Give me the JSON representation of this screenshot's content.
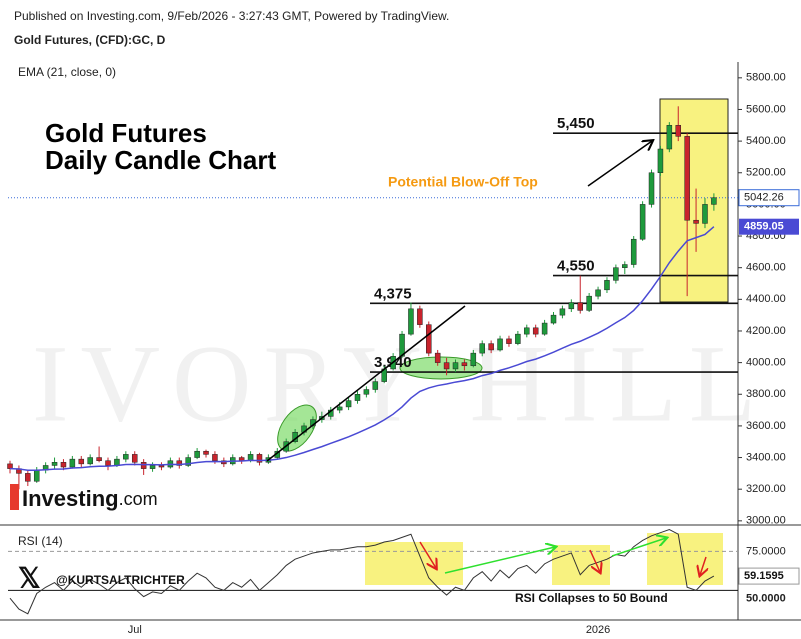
{
  "header": {
    "published": "Published on Investing.com, 9/Feb/2026 - 3:27:43 GMT, Powered by TradingView.",
    "symbol": "Gold Futures, (CFD):GC, D",
    "watermark": "IVORY HILL",
    "logo_main": "Investing",
    "logo_suffix": ".com",
    "handle": "@KURTSALTRICHTER"
  },
  "chart_data": [
    {
      "type": "candlestick",
      "title": "Gold Futures",
      "subtitle": "Daily Candle Chart",
      "annotation": "Potential Blow-Off Top",
      "up_color": "#1e9a3c",
      "down_color": "#c8232c",
      "categories": [
        null,
        null,
        null,
        null,
        null,
        null,
        null,
        null,
        null,
        null,
        null,
        null,
        null,
        null,
        "Jul",
        null,
        null,
        null,
        null,
        null,
        null,
        null,
        null,
        null,
        null,
        null,
        null,
        null,
        null,
        null,
        null,
        null,
        null,
        null,
        null,
        null,
        null,
        null,
        null,
        null,
        null,
        null,
        null,
        null,
        null,
        null,
        null,
        null,
        null,
        null,
        null,
        null,
        null,
        null,
        null,
        null,
        null,
        null,
        null,
        null,
        null,
        null,
        null,
        null,
        null,
        null,
        "2026",
        null,
        null,
        null,
        null,
        null,
        null,
        null,
        null,
        null,
        null,
        null,
        null,
        null
      ],
      "open": [
        3360,
        3330,
        3300,
        3250,
        3320,
        3350,
        3370,
        3340,
        3390,
        3360,
        3400,
        3380,
        3350,
        3390,
        3420,
        3370,
        3330,
        3350,
        3340,
        3380,
        3350,
        3400,
        3440,
        3420,
        3380,
        3360,
        3400,
        3380,
        3420,
        3370,
        3400,
        3440,
        3500,
        3560,
        3600,
        3640,
        3660,
        3700,
        3720,
        3760,
        3800,
        3830,
        3880,
        3960,
        4040,
        4180,
        4340,
        4240,
        4060,
        4000,
        3960,
        4000,
        3980,
        4060,
        4120,
        4080,
        4150,
        4120,
        4180,
        4220,
        4180,
        4250,
        4300,
        4340,
        4380,
        4330,
        4420,
        4460,
        4520,
        4600,
        4620,
        4780,
        5000,
        5200,
        5350,
        5500,
        5430,
        4900,
        4880,
        5000
      ],
      "high": [
        3380,
        3350,
        3320,
        3340,
        3370,
        3400,
        3390,
        3410,
        3410,
        3420,
        3470,
        3400,
        3410,
        3440,
        3440,
        3390,
        3370,
        3370,
        3400,
        3400,
        3420,
        3460,
        3450,
        3440,
        3400,
        3420,
        3410,
        3440,
        3430,
        3420,
        3460,
        3520,
        3580,
        3620,
        3660,
        3690,
        3720,
        3750,
        3780,
        3820,
        3850,
        3900,
        3980,
        4060,
        4200,
        4380,
        4360,
        4260,
        4080,
        4030,
        4020,
        4020,
        4080,
        4140,
        4140,
        4170,
        4170,
        4200,
        4240,
        4240,
        4270,
        4320,
        4360,
        4400,
        4550,
        4440,
        4480,
        4540,
        4620,
        4640,
        4800,
        5020,
        5220,
        5370,
        5520,
        5620,
        5450,
        5100,
        5040,
        5070
      ],
      "low": [
        3300,
        3200,
        3220,
        3240,
        3300,
        3330,
        3320,
        3330,
        3340,
        3350,
        3370,
        3320,
        3340,
        3370,
        3350,
        3290,
        3310,
        3320,
        3330,
        3330,
        3340,
        3390,
        3400,
        3360,
        3340,
        3350,
        3360,
        3370,
        3350,
        3360,
        3390,
        3430,
        3490,
        3540,
        3580,
        3620,
        3640,
        3680,
        3700,
        3740,
        3780,
        3810,
        3870,
        3950,
        4030,
        4170,
        4220,
        4040,
        3980,
        3920,
        3940,
        3950,
        3970,
        4040,
        4060,
        4070,
        4100,
        4110,
        4160,
        4160,
        4170,
        4240,
        4280,
        4320,
        4310,
        4320,
        4400,
        4440,
        4500,
        4560,
        4600,
        4770,
        4980,
        5180,
        5330,
        5400,
        4420,
        4700,
        4850,
        4960
      ],
      "close": [
        3330,
        3300,
        3250,
        3320,
        3350,
        3370,
        3340,
        3390,
        3360,
        3400,
        3380,
        3350,
        3390,
        3420,
        3370,
        3330,
        3350,
        3340,
        3380,
        3350,
        3400,
        3440,
        3420,
        3380,
        3360,
        3400,
        3380,
        3420,
        3370,
        3400,
        3440,
        3500,
        3560,
        3600,
        3640,
        3660,
        3700,
        3720,
        3760,
        3800,
        3830,
        3880,
        3960,
        4040,
        4180,
        4340,
        4240,
        4060,
        4000,
        3960,
        4000,
        3980,
        4060,
        4120,
        4080,
        4150,
        4120,
        4180,
        4220,
        4180,
        4250,
        4300,
        4340,
        4380,
        4330,
        4420,
        4460,
        4520,
        4600,
        4620,
        4780,
        5000,
        5200,
        5350,
        5500,
        5430,
        4900,
        4880,
        5000,
        5042.26
      ],
      "series": [
        {
          "name": "EMA (21, close, 0)",
          "color": "#4a4ad4",
          "values": [
            3330,
            3328,
            3320,
            3320,
            3323,
            3327,
            3328,
            3334,
            3336,
            3342,
            3345,
            3346,
            3350,
            3356,
            3357,
            3355,
            3355,
            3354,
            3357,
            3356,
            3361,
            3369,
            3374,
            3375,
            3374,
            3377,
            3378,
            3382,
            3381,
            3383,
            3389,
            3400,
            3415,
            3432,
            3451,
            3469,
            3490,
            3510,
            3531,
            3555,
            3580,
            3606,
            3638,
            3674,
            3720,
            3776,
            3818,
            3840,
            3855,
            3865,
            3877,
            3886,
            3899,
            3918,
            3931,
            3951,
            3967,
            3986,
            4007,
            4022,
            4043,
            4066,
            4091,
            4116,
            4135,
            4160,
            4186,
            4217,
            4252,
            4285,
            4330,
            4391,
            4465,
            4545,
            4632,
            4705,
            4770,
            4790,
            4810,
            4859.05
          ]
        }
      ],
      "levels": [
        {
          "value": 5450,
          "label": "5,450"
        },
        {
          "value": 4550,
          "label": "4,550"
        },
        {
          "value": 4375,
          "label": "4,375"
        },
        {
          "value": 3940,
          "label": "3,940"
        }
      ],
      "ylim": [
        2980,
        5900
      ],
      "yticks": [
        {
          "value": 3000,
          "label": "3000.00"
        },
        {
          "value": 3200,
          "label": "3200.00"
        },
        {
          "value": 3400,
          "label": "3400.00"
        },
        {
          "value": 3600,
          "label": "3600.00"
        },
        {
          "value": 3800,
          "label": "3800.00"
        },
        {
          "value": 4000,
          "label": "4000.00"
        },
        {
          "value": 4200,
          "label": "4200.00"
        },
        {
          "value": 4400,
          "label": "4400.00"
        },
        {
          "value": 4600,
          "label": "4600.00"
        },
        {
          "value": 4800,
          "label": "4800.00"
        },
        {
          "value": 5000,
          "label": "5000.00"
        },
        {
          "value": 5200,
          "label": "5200.00"
        },
        {
          "value": 5400,
          "label": "5400.00"
        },
        {
          "value": 5600,
          "label": "5600.00"
        },
        {
          "value": 5800,
          "label": "5800.00"
        }
      ]
    },
    {
      "type": "line",
      "annotation": "RSI Collapses to 50 Bound",
      "series": [
        {
          "name": "RSI (14)",
          "color": "#333333",
          "values": [
            45,
            38,
            35,
            48,
            52,
            55,
            50,
            56,
            52,
            57,
            54,
            50,
            55,
            58,
            51,
            46,
            49,
            48,
            53,
            50,
            56,
            61,
            58,
            52,
            50,
            55,
            52,
            57,
            50,
            55,
            60,
            66,
            70,
            72,
            74,
            75,
            76,
            76,
            77,
            78,
            78,
            79,
            81,
            82,
            84,
            86,
            72,
            58,
            52,
            47,
            52,
            50,
            58,
            62,
            56,
            63,
            58,
            64,
            66,
            61,
            67,
            70,
            72,
            74,
            60,
            66,
            68,
            70,
            73,
            72,
            78,
            82,
            85,
            87,
            89,
            86,
            52,
            50,
            56,
            59.1595
          ]
        }
      ],
      "ylim": [
        31,
        90
      ],
      "yticks": [
        {
          "value": 75,
          "label": "75.0000"
        },
        {
          "value": 50,
          "label": "50.0000"
        }
      ]
    }
  ]
}
